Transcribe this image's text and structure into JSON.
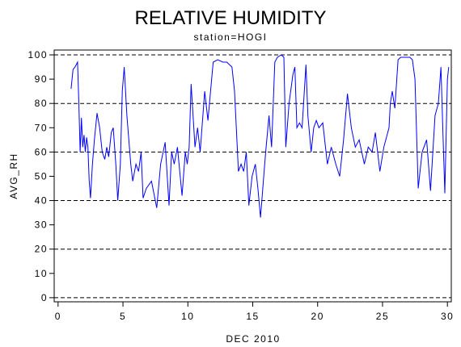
{
  "chart_data": {
    "type": "line",
    "title": "RELATIVE HUMIDITY",
    "subtitle": "station=HOGI",
    "y_label": "AVG_RH",
    "x_label": "DEC 2010",
    "xlim": [
      -0.3,
      30.3
    ],
    "ylim": [
      -1.7,
      102
    ],
    "xticks": [
      0,
      5,
      10,
      15,
      20,
      25,
      30
    ],
    "yticks": [
      0,
      10,
      20,
      30,
      40,
      50,
      60,
      70,
      80,
      90,
      100
    ],
    "hlines": [
      0,
      20,
      40,
      60,
      80,
      100
    ],
    "series": [
      {
        "color": "#0000ff",
        "x": [
          1.0,
          1.15,
          1.3,
          1.4,
          1.5,
          1.6,
          1.7,
          1.8,
          1.9,
          2.0,
          2.1,
          2.2,
          2.3,
          2.4,
          2.5,
          2.65,
          2.8,
          3.0,
          3.2,
          3.4,
          3.6,
          3.75,
          3.9,
          4.1,
          4.25,
          4.45,
          4.6,
          4.8,
          4.95,
          5.1,
          5.3,
          5.6,
          5.75,
          6.0,
          6.2,
          6.4,
          6.55,
          6.8,
          7.2,
          7.6,
          7.9,
          8.25,
          8.55,
          8.75,
          8.95,
          9.2,
          9.55,
          9.8,
          9.95,
          10.1,
          10.25,
          10.55,
          10.75,
          10.95,
          11.3,
          11.55,
          11.95,
          12.3,
          12.7,
          13.0,
          13.4,
          13.6,
          13.9,
          14.1,
          14.3,
          14.5,
          14.7,
          14.95,
          15.2,
          15.4,
          15.6,
          15.85,
          16.0,
          16.25,
          16.45,
          16.7,
          16.9,
          17.2,
          17.4,
          17.55,
          17.8,
          18.1,
          18.25,
          18.4,
          18.6,
          18.8,
          19.1,
          19.25,
          19.5,
          19.7,
          19.9,
          20.1,
          20.4,
          20.75,
          21.05,
          21.4,
          21.7,
          22.0,
          22.3,
          22.6,
          22.9,
          23.2,
          23.6,
          23.9,
          24.2,
          24.45,
          24.8,
          25.1,
          25.5,
          25.6,
          25.75,
          25.95,
          26.2,
          26.4,
          26.8,
          27.1,
          27.3,
          27.5,
          27.75,
          28.05,
          28.4,
          28.7,
          29.05,
          29.3,
          29.5,
          29.7,
          29.8,
          30.0,
          30.1
        ],
        "values": [
          86,
          94,
          95,
          96,
          97,
          80,
          60,
          74,
          62,
          67,
          60,
          66,
          62,
          48,
          41,
          55,
          65,
          76,
          70,
          60,
          57,
          62,
          58,
          68,
          70,
          55,
          40,
          55,
          85,
          95,
          75,
          55,
          48,
          55,
          52,
          60,
          41,
          45,
          48,
          37,
          55,
          64,
          38,
          60,
          55,
          62,
          42,
          60,
          55,
          62,
          88,
          62,
          70,
          60,
          85,
          73,
          97,
          98,
          97,
          97,
          95,
          85,
          52,
          55,
          52,
          60,
          38,
          50,
          55,
          45,
          33,
          50,
          60,
          75,
          62,
          97,
          99,
          100,
          99,
          62,
          80,
          92,
          95,
          70,
          72,
          70,
          96,
          75,
          60,
          70,
          73,
          70,
          72,
          55,
          62,
          55,
          50,
          65,
          84,
          70,
          62,
          65,
          55,
          62,
          60,
          68,
          52,
          62,
          70,
          80,
          85,
          78,
          98,
          99,
          99,
          99,
          98,
          90,
          45,
          60,
          65,
          44,
          75,
          80,
          95,
          60,
          43,
          90,
          95
        ]
      }
    ]
  }
}
